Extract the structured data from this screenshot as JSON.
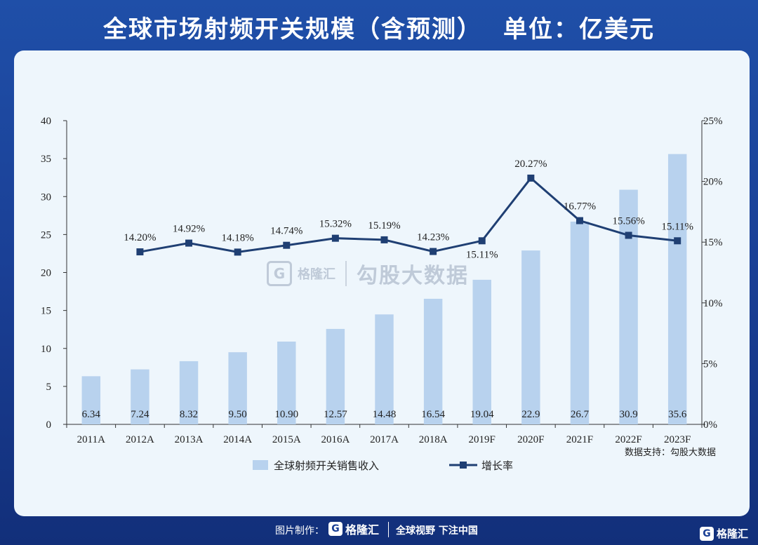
{
  "header": {
    "title": "全球市场射频开关规模（含预测）",
    "unit": "单位：亿美元"
  },
  "watermark": {
    "logo_letter": "G",
    "brand": "格隆汇",
    "text": "勾股大数据"
  },
  "source_note": "数据支持：勾股大数据",
  "footer": {
    "made_by": "图片制作：",
    "logo_letter": "G",
    "brand": "格隆汇",
    "slogan": "全球视野 下注中国",
    "corner_brand": "格隆汇"
  },
  "colors": {
    "bar": "#b8d2ee",
    "line": "#1f3f73",
    "panel": "#eef6fc",
    "background": "#1a3f95"
  },
  "chart_data": {
    "type": "bar",
    "categories": [
      "2011A",
      "2012A",
      "2013A",
      "2014A",
      "2015A",
      "2016A",
      "2017A",
      "2018A",
      "2019F",
      "2020F",
      "2021F",
      "2022F",
      "2023F"
    ],
    "series": [
      {
        "name": "全球射频开关销售收入",
        "type": "bar",
        "axis": "left",
        "values": [
          6.34,
          7.24,
          8.32,
          9.5,
          10.9,
          12.57,
          14.48,
          16.54,
          19.04,
          22.9,
          26.7,
          30.9,
          35.6
        ],
        "labels": [
          "6.34",
          "7.24",
          "8.32",
          "9.50",
          "10.90",
          "12.57",
          "14.48",
          "16.54",
          "19.04",
          "22.9",
          "26.7",
          "30.9",
          "35.6"
        ]
      },
      {
        "name": "增长率",
        "type": "line",
        "axis": "right",
        "values": [
          null,
          14.2,
          14.92,
          14.18,
          14.74,
          15.32,
          15.19,
          14.23,
          15.11,
          20.27,
          16.77,
          15.56,
          15.11
        ],
        "labels": [
          "",
          "14.20%",
          "14.92%",
          "14.18%",
          "14.74%",
          "15.32%",
          "15.19%",
          "14.23%",
          "15.11%",
          "20.27%",
          "16.77%",
          "15.56%",
          "15.11%"
        ]
      }
    ],
    "y_left": {
      "min": 0,
      "max": 40,
      "ticks": [
        "0",
        "5",
        "10",
        "15",
        "20",
        "25",
        "30",
        "35",
        "40"
      ]
    },
    "y_right": {
      "min": 0,
      "max": 25,
      "ticks": [
        "0%",
        "5%",
        "10%",
        "15%",
        "20%",
        "25%"
      ]
    },
    "legend": {
      "position": "bottom",
      "items": [
        "全球射频开关销售收入",
        "增长率"
      ]
    },
    "grid": false
  }
}
